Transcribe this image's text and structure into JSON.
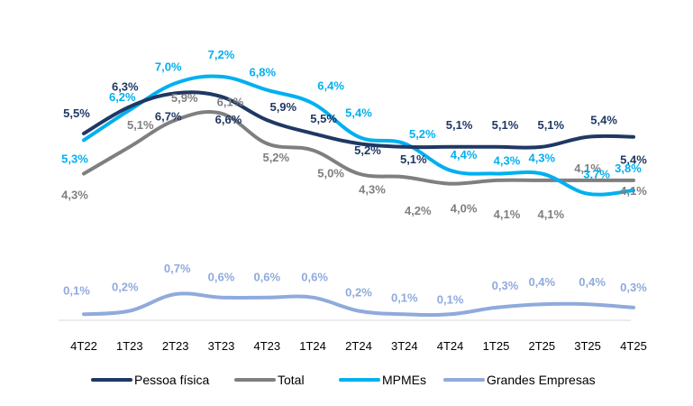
{
  "chart_data": {
    "type": "line",
    "title": "",
    "xlabel": "",
    "ylabel": "",
    "ylim": [
      0,
      8
    ],
    "grid": false,
    "legend_position": "bottom",
    "categories": [
      "4T22",
      "1T23",
      "2T23",
      "3T23",
      "4T23",
      "1T24",
      "2T24",
      "3T24",
      "4T24",
      "1T25",
      "2T25",
      "3T25",
      "4T25"
    ],
    "series": [
      {
        "name": "Pessoa física",
        "color": "#1f3864",
        "values": [
          5.5,
          6.3,
          6.7,
          6.6,
          5.9,
          5.5,
          5.2,
          5.1,
          5.1,
          5.1,
          5.1,
          5.4,
          5.4
        ],
        "labels": [
          "5,5%",
          "6,3%",
          "6,7%",
          "6,6%",
          "5,9%",
          "5,5%",
          "5,2%",
          "5,1%",
          "5,1%",
          "5,1%",
          "5,1%",
          "5,4%",
          "5,4%"
        ]
      },
      {
        "name": "Total",
        "color": "#7f7f7f",
        "values": [
          4.3,
          5.1,
          5.9,
          6.1,
          5.2,
          5.0,
          4.3,
          4.2,
          4.0,
          4.1,
          4.1,
          4.1,
          4.1
        ],
        "labels": [
          "4,3%",
          "5,1%",
          "5,9%",
          "6,1%",
          "5,2%",
          "5,0%",
          "4,3%",
          "4,2%",
          "4,0%",
          "4,1%",
          "4,1%",
          "4,1%",
          "4,1%"
        ]
      },
      {
        "name": "MPMEs",
        "color": "#00b0f0",
        "values": [
          5.3,
          6.2,
          7.0,
          7.2,
          6.8,
          6.4,
          5.4,
          5.2,
          4.4,
          4.3,
          4.3,
          3.7,
          3.8
        ],
        "labels": [
          "5,3%",
          "6,2%",
          "7,0%",
          "7,2%",
          "6,8%",
          "6,4%",
          "5,4%",
          "5,2%",
          "4,4%",
          "4,3%",
          "4,3%",
          "3,7%",
          "3,8%"
        ]
      },
      {
        "name": "Grandes Empresas",
        "color": "#8faadc",
        "values": [
          0.1,
          0.2,
          0.7,
          0.6,
          0.6,
          0.6,
          0.2,
          0.1,
          0.1,
          0.3,
          0.4,
          0.4,
          0.3
        ],
        "labels": [
          "0,1%",
          "0,2%",
          "0,7%",
          "0,6%",
          "0,6%",
          "0,6%",
          "0,2%",
          "0,1%",
          "0,1%",
          "0,3%",
          "0,4%",
          "0,4%",
          "0,3%"
        ]
      }
    ]
  }
}
